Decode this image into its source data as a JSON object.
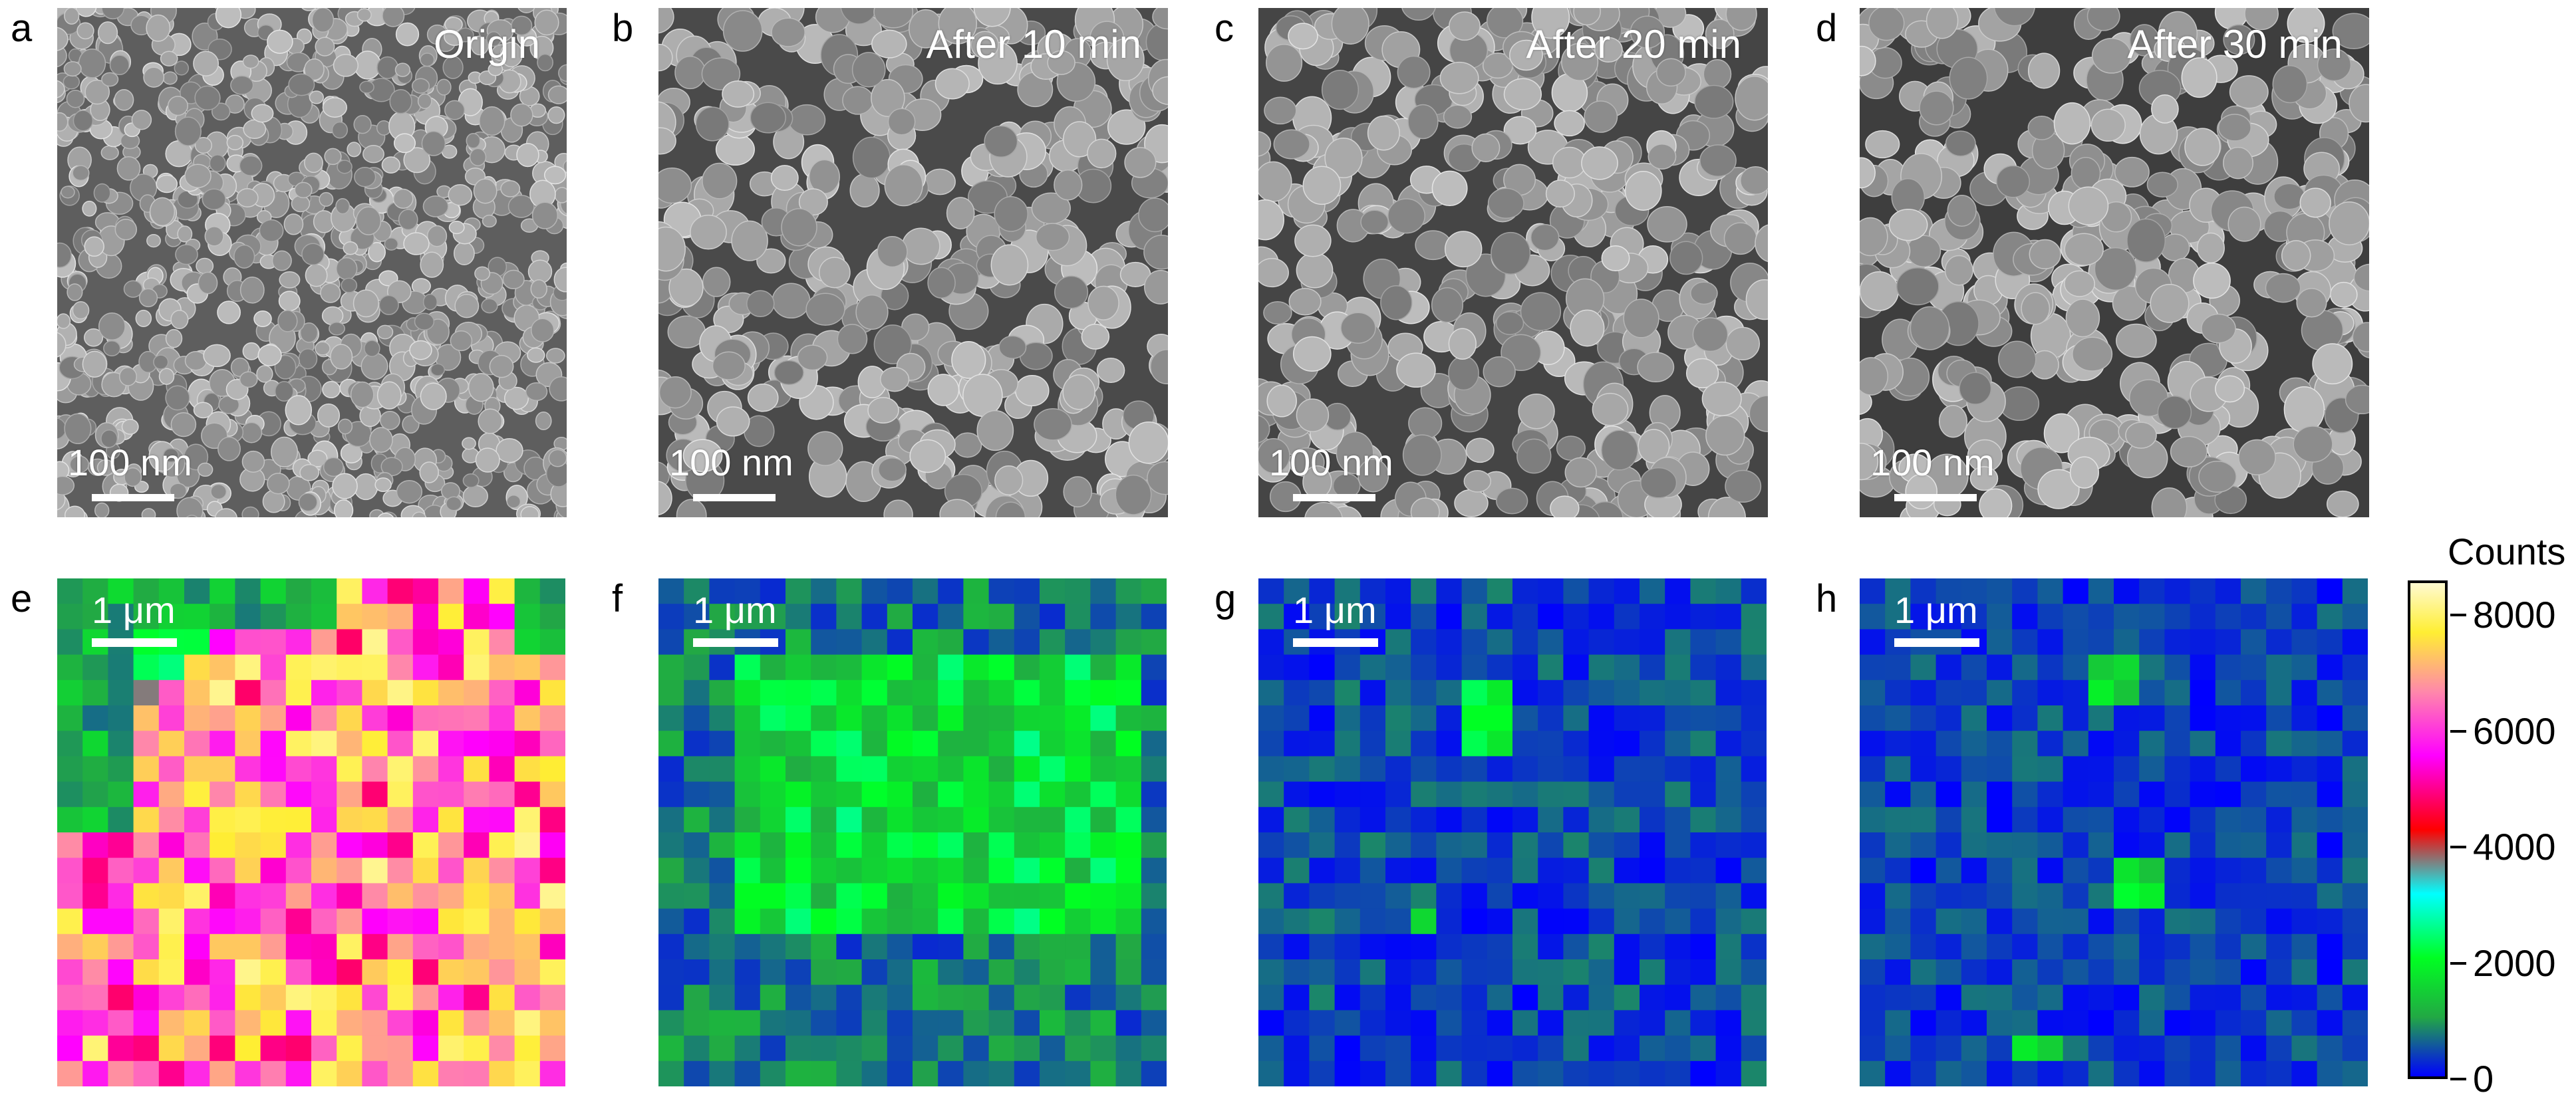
{
  "panels_sem": [
    {
      "letter": "a",
      "title": "Origin",
      "scale_label": "100 nm"
    },
    {
      "letter": "b",
      "title": "After 10 min",
      "scale_label": "100 nm"
    },
    {
      "letter": "c",
      "title": "After 20 min",
      "scale_label": "100 nm"
    },
    {
      "letter": "d",
      "title": "After 30 min",
      "scale_label": "100 nm"
    }
  ],
  "panels_map": [
    {
      "letter": "e",
      "scale_label": "1 μm"
    },
    {
      "letter": "f",
      "scale_label": "1 μm"
    },
    {
      "letter": "g",
      "scale_label": "1 μm"
    },
    {
      "letter": "h",
      "scale_label": "1 μm"
    }
  ],
  "colorbar": {
    "title": "Counts",
    "ticks": [
      "0",
      "2000",
      "4000",
      "6000",
      "8000"
    ],
    "range": [
      0,
      8600
    ],
    "colors": [
      "#0000ff",
      "#22a844",
      "#00ff22",
      "#00ffff",
      "#ff0000",
      "#ff00ff",
      "#ff88aa",
      "#ffee33",
      "#fffad0"
    ]
  }
}
